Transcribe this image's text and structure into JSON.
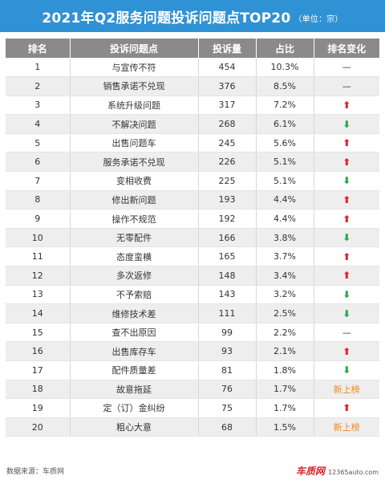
{
  "title": "2021年Q2服务问题投诉问题点TOP20",
  "unit": "（单位：宗）",
  "headers": [
    "排名",
    "投诉问题点",
    "投诉量",
    "占比",
    "排名变化"
  ],
  "rows": [
    {
      "rank": "1",
      "issue": "与宣传不符",
      "count": "454",
      "share": "10.3%",
      "change": "—",
      "change_type": "flat"
    },
    {
      "rank": "2",
      "issue": "销售承诺不兑现",
      "count": "376",
      "share": "8.5%",
      "change": "—",
      "change_type": "flat"
    },
    {
      "rank": "3",
      "issue": "系统升级问题",
      "count": "317",
      "share": "7.2%",
      "change": "⬆",
      "change_type": "up"
    },
    {
      "rank": "4",
      "issue": "不解决问题",
      "count": "268",
      "share": "6.1%",
      "change": "⬇",
      "change_type": "down"
    },
    {
      "rank": "5",
      "issue": "出售问题车",
      "count": "245",
      "share": "5.6%",
      "change": "⬆",
      "change_type": "up"
    },
    {
      "rank": "6",
      "issue": "服务承诺不兑现",
      "count": "226",
      "share": "5.1%",
      "change": "⬆",
      "change_type": "up"
    },
    {
      "rank": "7",
      "issue": "变相收费",
      "count": "225",
      "share": "5.1%",
      "change": "⬇",
      "change_type": "down"
    },
    {
      "rank": "8",
      "issue": "修出新问题",
      "count": "193",
      "share": "4.4%",
      "change": "⬆",
      "change_type": "up"
    },
    {
      "rank": "9",
      "issue": "操作不规范",
      "count": "192",
      "share": "4.4%",
      "change": "⬆",
      "change_type": "up"
    },
    {
      "rank": "10",
      "issue": "无零配件",
      "count": "166",
      "share": "3.8%",
      "change": "⬇",
      "change_type": "down"
    },
    {
      "rank": "11",
      "issue": "态度蛮横",
      "count": "165",
      "share": "3.7%",
      "change": "⬆",
      "change_type": "up"
    },
    {
      "rank": "12",
      "issue": "多次返修",
      "count": "148",
      "share": "3.4%",
      "change": "⬆",
      "change_type": "up"
    },
    {
      "rank": "13",
      "issue": "不予索赔",
      "count": "143",
      "share": "3.2%",
      "change": "⬇",
      "change_type": "down"
    },
    {
      "rank": "14",
      "issue": "维修技术差",
      "count": "111",
      "share": "2.5%",
      "change": "⬇",
      "change_type": "down"
    },
    {
      "rank": "15",
      "issue": "查不出原因",
      "count": "99",
      "share": "2.2%",
      "change": "—",
      "change_type": "flat"
    },
    {
      "rank": "16",
      "issue": "出售库存车",
      "count": "93",
      "share": "2.1%",
      "change": "⬆",
      "change_type": "up"
    },
    {
      "rank": "17",
      "issue": "配件质量差",
      "count": "81",
      "share": "1.8%",
      "change": "⬇",
      "change_type": "down"
    },
    {
      "rank": "18",
      "issue": "故意拖延",
      "count": "76",
      "share": "1.7%",
      "change": "新上榜",
      "change_type": "new"
    },
    {
      "rank": "19",
      "issue": "定（订）金纠纷",
      "count": "75",
      "share": "1.7%",
      "change": "⬆",
      "change_type": "up"
    },
    {
      "rank": "20",
      "issue": "粗心大意",
      "count": "68",
      "share": "1.5%",
      "change": "新上榜",
      "change_type": "new"
    }
  ],
  "footer": {
    "source": "数据来源：车质网",
    "logo_text": "车质网",
    "logo_url": "12365auto.com"
  },
  "colors": {
    "title_bg": "#2f92d5",
    "header_bg": "#8a8a8a",
    "up": "#e0242a",
    "down": "#29a84a",
    "new": "#f08a1d"
  }
}
